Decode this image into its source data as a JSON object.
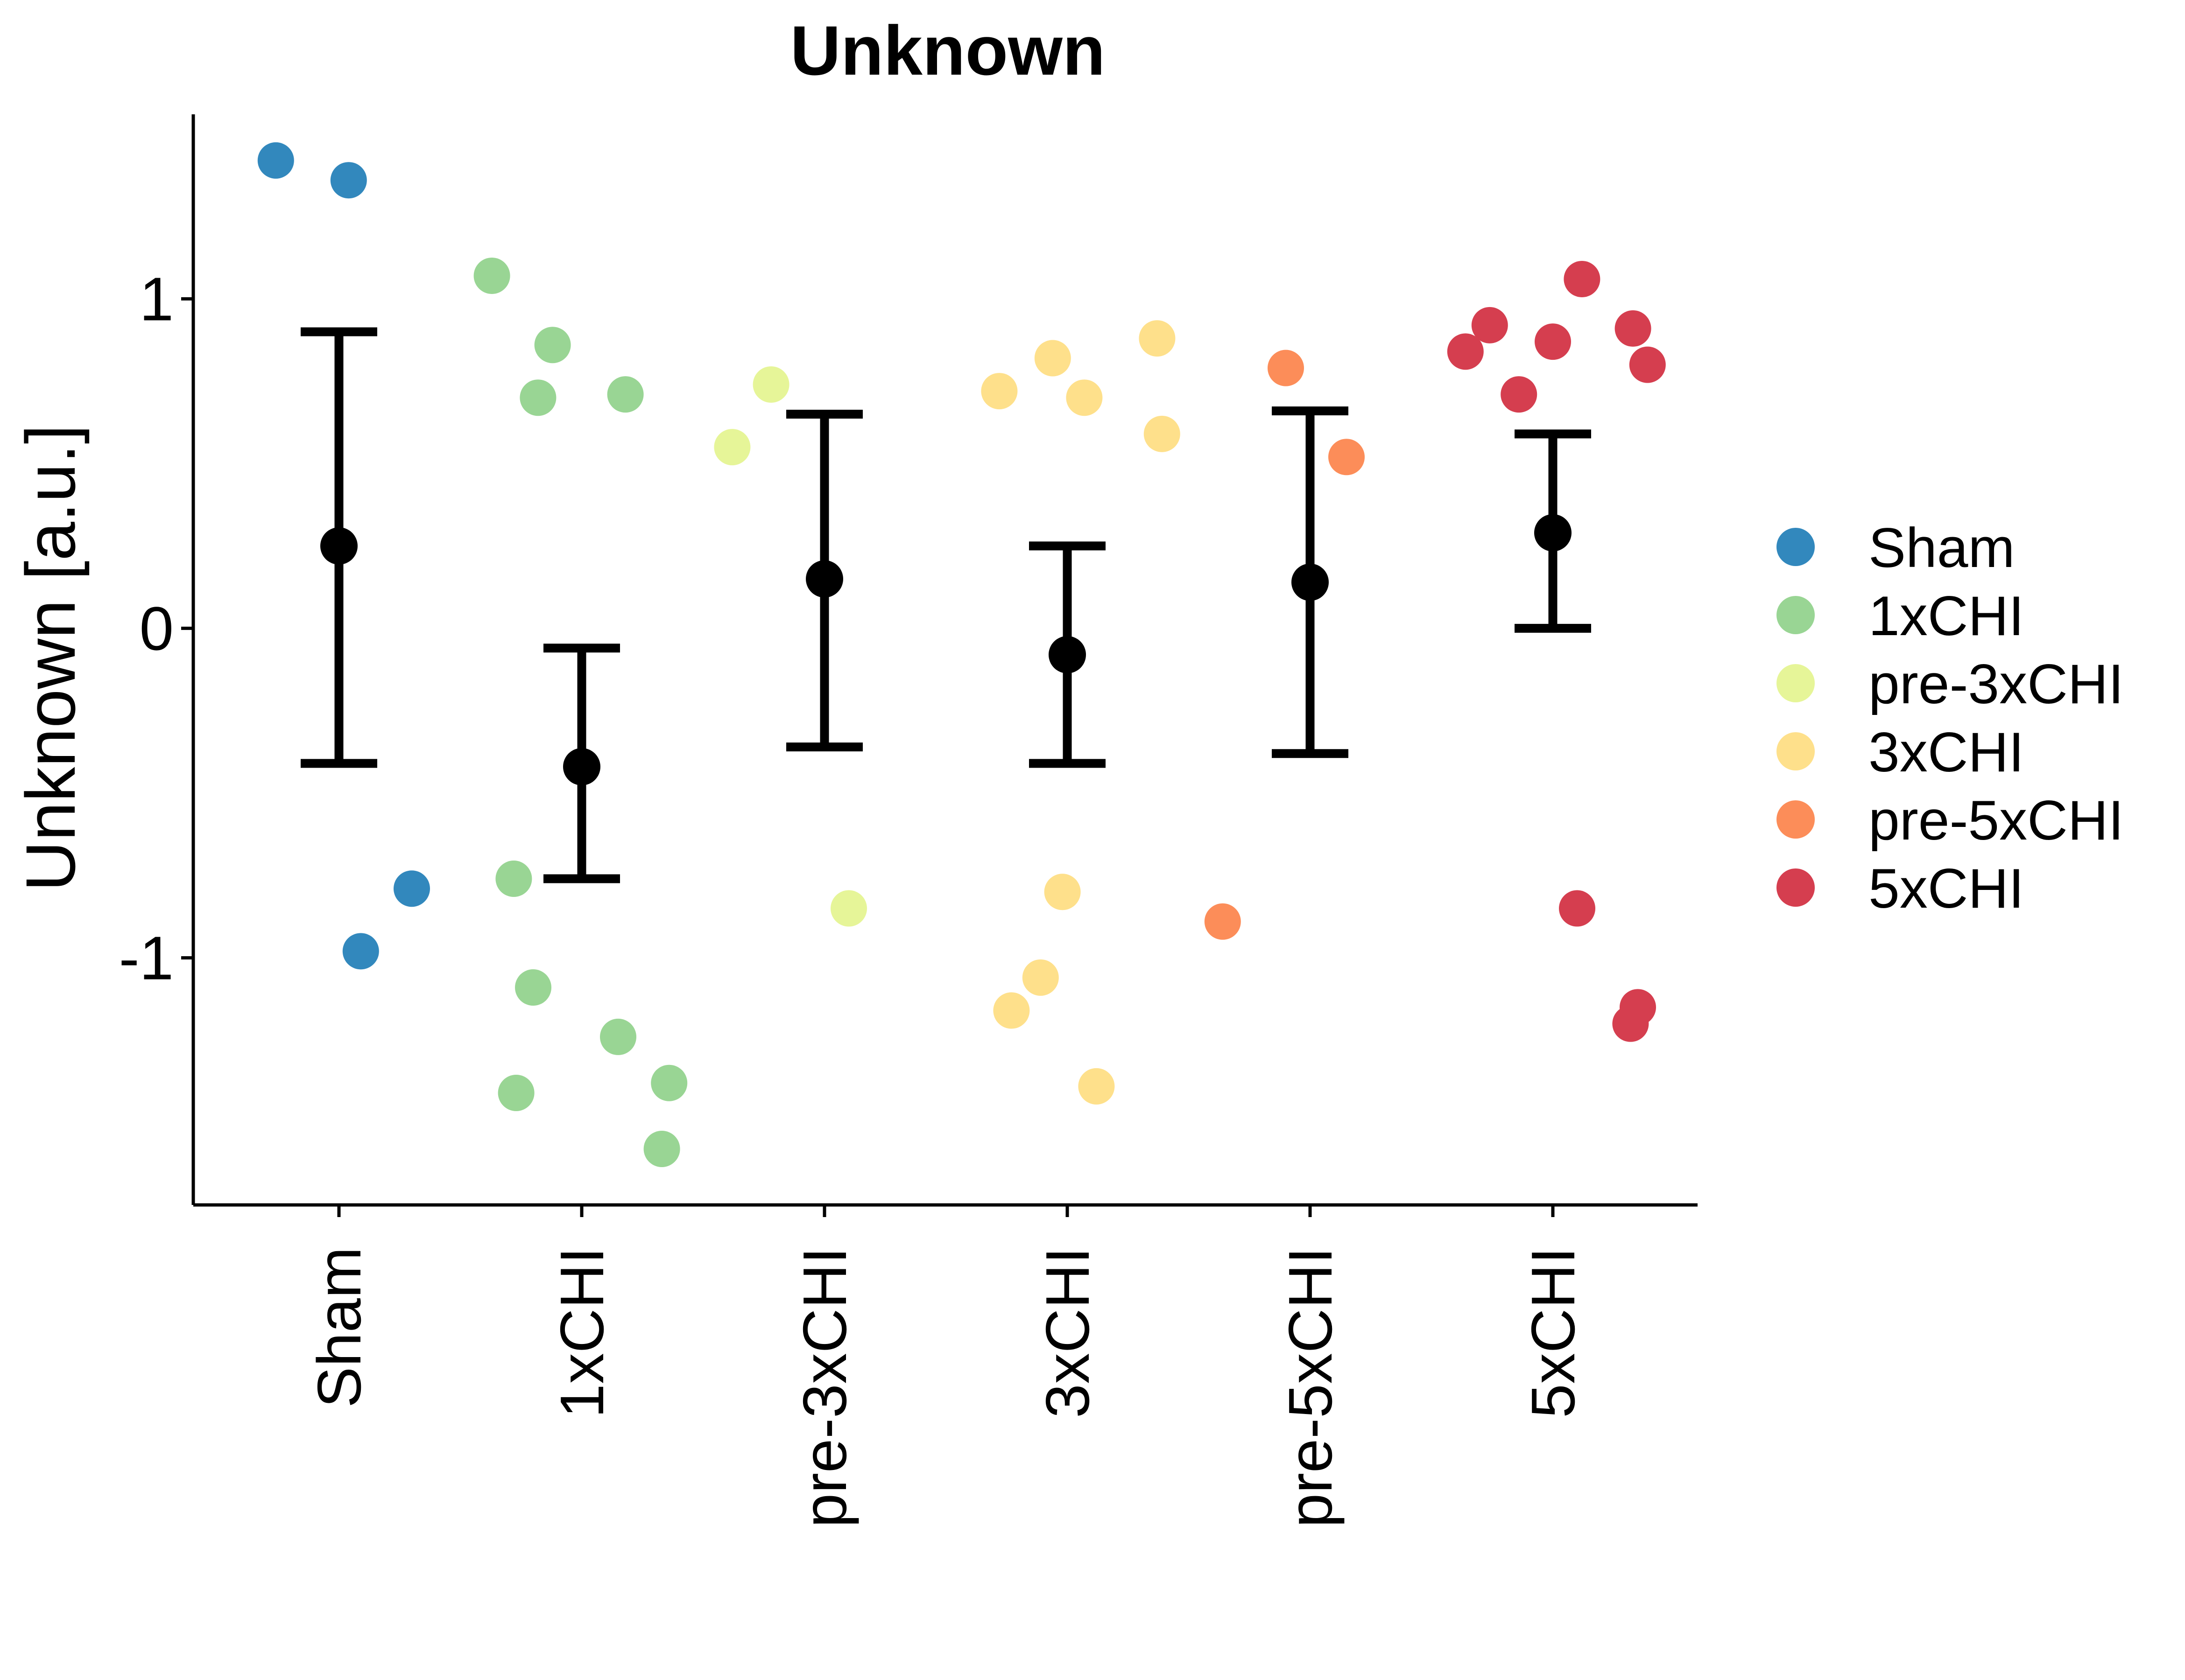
{
  "chart_data": {
    "type": "scatter",
    "title": "Unknown",
    "xlabel": "",
    "ylabel": "Unknown [a.u.]",
    "ylim": [
      -1.75,
      1.56
    ],
    "y_ticks": [
      -1,
      0,
      1
    ],
    "y_tick_labels": [
      "-1",
      "0",
      "1"
    ],
    "grid": false,
    "legend_position": "right",
    "categories": [
      "Sham",
      "1xCHI",
      "pre-3xCHI",
      "3xCHI",
      "pre-5xCHI",
      "5xCHI"
    ],
    "colors": {
      "Sham": "#3288bd",
      "1xCHI": "#99d594",
      "pre-3xCHI": "#e6f598",
      "3xCHI": "#fee08b",
      "pre-5xCHI": "#fc8d59",
      "5xCHI": "#d53e4f",
      "summary": "#000000"
    },
    "series": [
      {
        "name": "Sham",
        "points": [
          {
            "x": -0.26,
            "y": 1.42
          },
          {
            "x": 0.04,
            "y": 1.36
          },
          {
            "x": 0.3,
            "y": -0.79
          },
          {
            "x": 0.09,
            "y": -0.98
          }
        ]
      },
      {
        "name": "1xCHI",
        "points": [
          {
            "x": -0.37,
            "y": 1.07
          },
          {
            "x": -0.12,
            "y": 0.86
          },
          {
            "x": -0.18,
            "y": 0.7
          },
          {
            "x": 0.18,
            "y": 0.71
          },
          {
            "x": -0.28,
            "y": -0.76
          },
          {
            "x": -0.2,
            "y": -1.09
          },
          {
            "x": 0.15,
            "y": -1.24
          },
          {
            "x": -0.27,
            "y": -1.41
          },
          {
            "x": 0.36,
            "y": -1.38
          },
          {
            "x": 0.33,
            "y": -1.58
          }
        ]
      },
      {
        "name": "pre-3xCHI",
        "points": [
          {
            "x": -0.22,
            "y": 0.74
          },
          {
            "x": -0.38,
            "y": 0.55
          },
          {
            "x": 0.1,
            "y": -0.85
          }
        ]
      },
      {
        "name": "3xCHI",
        "points": [
          {
            "x": -0.28,
            "y": 0.72
          },
          {
            "x": -0.06,
            "y": 0.82
          },
          {
            "x": 0.07,
            "y": 0.7
          },
          {
            "x": 0.37,
            "y": 0.88
          },
          {
            "x": 0.39,
            "y": 0.59
          },
          {
            "x": -0.02,
            "y": -0.8
          },
          {
            "x": -0.23,
            "y": -1.16
          },
          {
            "x": -0.11,
            "y": -1.06
          },
          {
            "x": 0.12,
            "y": -1.39
          }
        ]
      },
      {
        "name": "pre-5xCHI",
        "points": [
          {
            "x": -0.1,
            "y": 0.79
          },
          {
            "x": 0.15,
            "y": 0.52
          },
          {
            "x": -0.36,
            "y": -0.89
          }
        ]
      },
      {
        "name": "5xCHI",
        "points": [
          {
            "x": -0.36,
            "y": 0.84
          },
          {
            "x": -0.26,
            "y": 0.92
          },
          {
            "x": -0.14,
            "y": 0.71
          },
          {
            "x": 0.0,
            "y": 0.87
          },
          {
            "x": 0.12,
            "y": 1.06
          },
          {
            "x": 0.33,
            "y": 0.91
          },
          {
            "x": 0.39,
            "y": 0.8
          },
          {
            "x": 0.1,
            "y": -0.85
          },
          {
            "x": 0.35,
            "y": -1.15
          },
          {
            "x": 0.32,
            "y": -1.2
          }
        ]
      }
    ],
    "summary": {
      "mean": [
        0.25,
        -0.42,
        0.15,
        -0.08,
        0.14,
        0.29
      ],
      "lower": [
        -0.41,
        -0.76,
        -0.36,
        -0.41,
        -0.38,
        0.0
      ],
      "upper": [
        0.9,
        -0.06,
        0.65,
        0.25,
        0.66,
        0.59
      ]
    }
  }
}
